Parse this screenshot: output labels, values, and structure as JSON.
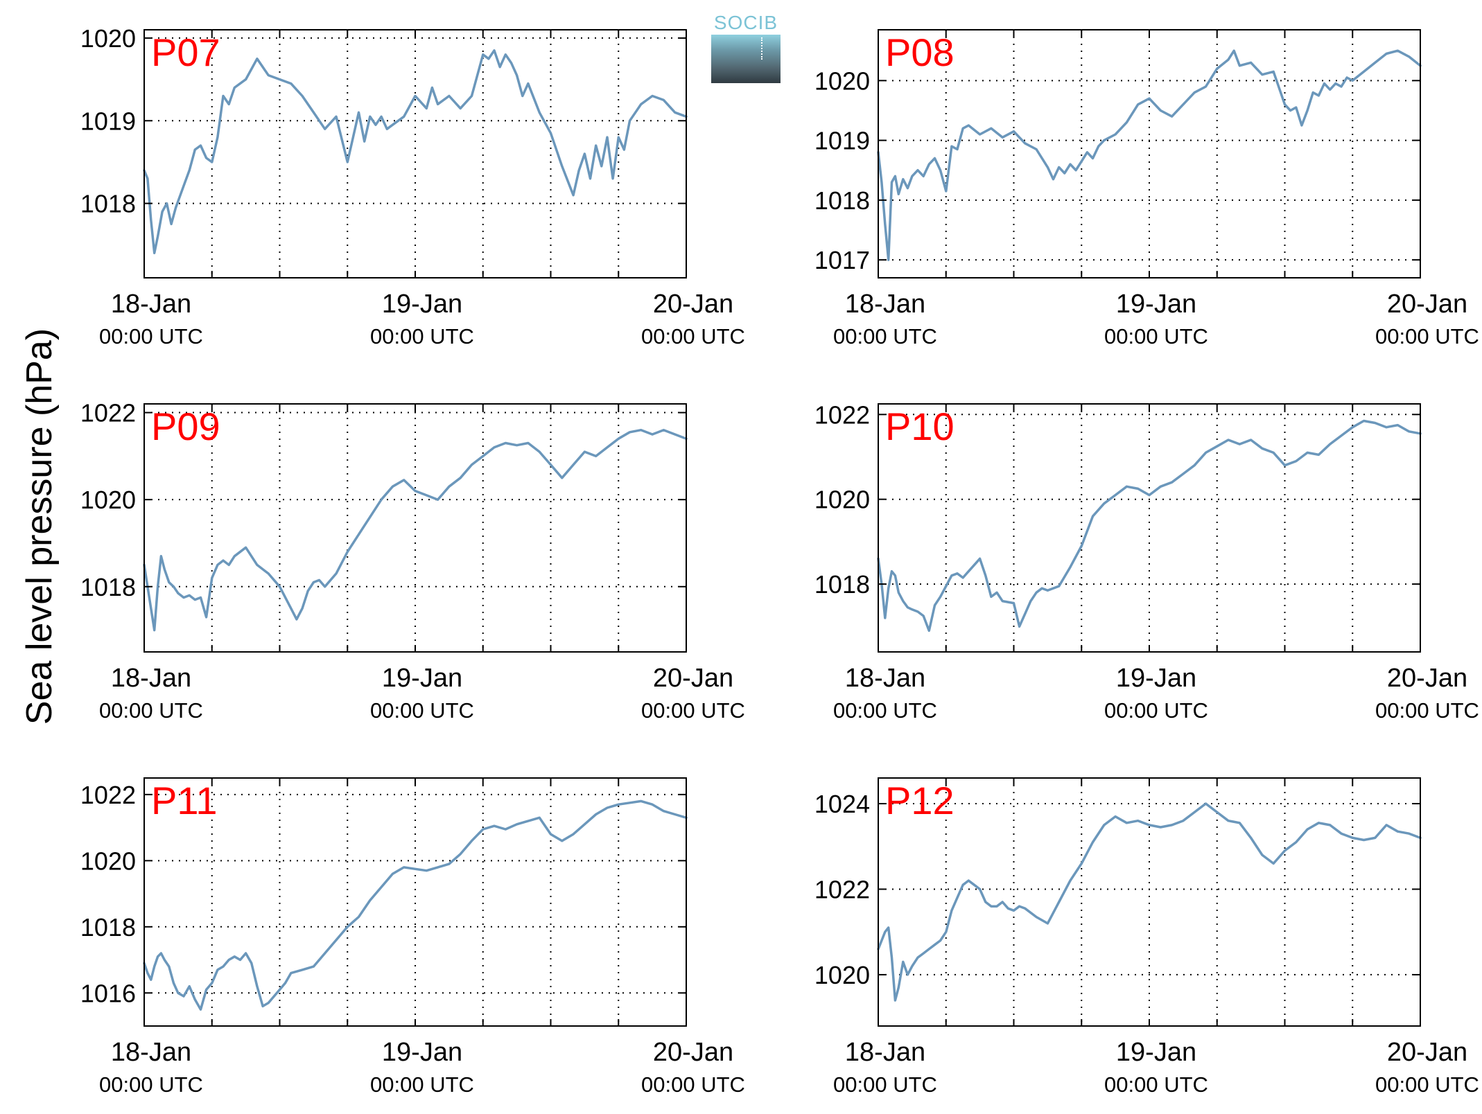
{
  "figure": {
    "ylabel": "Sea level pressure (hPa)",
    "logo_text": "SOCIB",
    "colors": {
      "line": "#6b97bb",
      "panel_label": "#ff0000",
      "axis": "#000000",
      "grid": "#000000"
    }
  },
  "chart_data": [
    {
      "type": "line",
      "title": "P07",
      "x_tick_labels": [
        [
          "18-Jan",
          "00:00 UTC"
        ],
        [
          "19-Jan",
          "00:00 UTC"
        ],
        [
          "20-Jan",
          "00:00 UTC"
        ]
      ],
      "x_ticks_hours": [
        0,
        6,
        12,
        18,
        24,
        30,
        36,
        42,
        48
      ],
      "xlim": [
        0,
        48
      ],
      "ylim": [
        1017.1,
        1020.1
      ],
      "yticks": [
        1018,
        1019,
        1020
      ],
      "grid": true,
      "series": [
        {
          "x": [
            0,
            0.3,
            0.6,
            0.9,
            1.2,
            1.6,
            2,
            2.4,
            2.8,
            3.2,
            3.6,
            4,
            4.5,
            5,
            5.5,
            6,
            6.5,
            7,
            7.5,
            8,
            9,
            10,
            11,
            12,
            13,
            14,
            15,
            16,
            17,
            18,
            18.5,
            19,
            19.5,
            20,
            20.5,
            21,
            21.5,
            22,
            23,
            24,
            25,
            25.5,
            26,
            27,
            28,
            29,
            30,
            30.5,
            31,
            31.5,
            32,
            32.5,
            33,
            33.5,
            34,
            35,
            36,
            37,
            38,
            38.5,
            39,
            39.5,
            40,
            40.5,
            41,
            41.5,
            42,
            42.5,
            43,
            43.5,
            44,
            45,
            46,
            47,
            48
          ],
          "y": [
            1018.4,
            1018.3,
            1017.8,
            1017.4,
            1017.6,
            1017.9,
            1018.0,
            1017.75,
            1017.95,
            1018.1,
            1018.25,
            1018.4,
            1018.65,
            1018.7,
            1018.55,
            1018.5,
            1018.8,
            1019.3,
            1019.2,
            1019.4,
            1019.5,
            1019.75,
            1019.55,
            1019.5,
            1019.45,
            1019.3,
            1019.1,
            1018.9,
            1019.05,
            1018.5,
            1018.8,
            1019.1,
            1018.75,
            1019.05,
            1018.95,
            1019.05,
            1018.9,
            1018.95,
            1019.05,
            1019.3,
            1019.15,
            1019.4,
            1019.2,
            1019.3,
            1019.15,
            1019.3,
            1019.8,
            1019.75,
            1019.85,
            1019.65,
            1019.8,
            1019.7,
            1019.55,
            1019.3,
            1019.45,
            1019.1,
            1018.85,
            1018.45,
            1018.1,
            1018.4,
            1018.6,
            1018.3,
            1018.7,
            1018.45,
            1018.8,
            1018.3,
            1018.8,
            1018.65,
            1019.0,
            1019.1,
            1019.2,
            1019.3,
            1019.25,
            1019.1,
            1019.05
          ]
        }
      ]
    },
    {
      "type": "line",
      "title": "P08",
      "x_tick_labels": [
        [
          "18-Jan",
          "00:00 UTC"
        ],
        [
          "19-Jan",
          "00:00 UTC"
        ],
        [
          "20-Jan",
          "00:00 UTC"
        ]
      ],
      "x_ticks_hours": [
        0,
        6,
        12,
        18,
        24,
        30,
        36,
        42,
        48
      ],
      "xlim": [
        0,
        48
      ],
      "ylim": [
        1016.7,
        1020.85
      ],
      "yticks": [
        1017,
        1018,
        1019,
        1020
      ],
      "grid": true,
      "series": [
        {
          "x": [
            0,
            0.3,
            0.6,
            0.9,
            1.2,
            1.5,
            1.8,
            2.2,
            2.6,
            3,
            3.5,
            4,
            4.5,
            5,
            5.5,
            6,
            6.5,
            7,
            7.5,
            8,
            9,
            10,
            11,
            12,
            13,
            14,
            15,
            15.5,
            16,
            16.5,
            17,
            17.5,
            18,
            18.5,
            19,
            19.5,
            20,
            21,
            22,
            23,
            24,
            25,
            26,
            27,
            28,
            29,
            30,
            31,
            31.5,
            32,
            33,
            34,
            35,
            36,
            36.5,
            37,
            37.5,
            38,
            38.5,
            39,
            39.5,
            40,
            40.5,
            41,
            41.5,
            42,
            43,
            44,
            45,
            46,
            47,
            48
          ],
          "y": [
            1018.8,
            1018.3,
            1017.6,
            1017.0,
            1018.3,
            1018.4,
            1018.1,
            1018.35,
            1018.2,
            1018.4,
            1018.5,
            1018.4,
            1018.6,
            1018.7,
            1018.5,
            1018.15,
            1018.9,
            1018.85,
            1019.2,
            1019.25,
            1019.1,
            1019.2,
            1019.05,
            1019.15,
            1018.95,
            1018.85,
            1018.55,
            1018.35,
            1018.55,
            1018.45,
            1018.6,
            1018.5,
            1018.65,
            1018.8,
            1018.7,
            1018.9,
            1019.0,
            1019.1,
            1019.3,
            1019.6,
            1019.7,
            1019.5,
            1019.4,
            1019.6,
            1019.8,
            1019.9,
            1020.2,
            1020.35,
            1020.5,
            1020.25,
            1020.3,
            1020.1,
            1020.15,
            1019.6,
            1019.5,
            1019.55,
            1019.25,
            1019.5,
            1019.8,
            1019.75,
            1019.95,
            1019.85,
            1019.95,
            1019.9,
            1020.05,
            1020.0,
            1020.15,
            1020.3,
            1020.45,
            1020.5,
            1020.4,
            1020.25
          ]
        }
      ]
    },
    {
      "type": "line",
      "title": "P09",
      "x_tick_labels": [
        [
          "18-Jan",
          "00:00 UTC"
        ],
        [
          "19-Jan",
          "00:00 UTC"
        ],
        [
          "20-Jan",
          "00:00 UTC"
        ]
      ],
      "x_ticks_hours": [
        0,
        6,
        12,
        18,
        24,
        30,
        36,
        42,
        48
      ],
      "xlim": [
        0,
        48
      ],
      "ylim": [
        1016.5,
        1022.2
      ],
      "yticks": [
        1018,
        1020,
        1022
      ],
      "grid": true,
      "series": [
        {
          "x": [
            0,
            0.3,
            0.6,
            0.9,
            1.2,
            1.5,
            1.8,
            2.2,
            2.6,
            3,
            3.5,
            4,
            4.5,
            5,
            5.5,
            6,
            6.5,
            7,
            7.5,
            8,
            9,
            10,
            11,
            12,
            13,
            13.5,
            14,
            14.5,
            15,
            15.5,
            16,
            17,
            18,
            19,
            20,
            21,
            22,
            23,
            24,
            25,
            26,
            27,
            28,
            29,
            30,
            31,
            32,
            33,
            34,
            35,
            36,
            37,
            38,
            39,
            40,
            41,
            42,
            43,
            44,
            45,
            46,
            47,
            48
          ],
          "y": [
            1018.5,
            1018.0,
            1017.5,
            1017.0,
            1018.0,
            1018.7,
            1018.4,
            1018.1,
            1018.0,
            1017.85,
            1017.75,
            1017.8,
            1017.7,
            1017.75,
            1017.3,
            1018.2,
            1018.5,
            1018.6,
            1018.5,
            1018.7,
            1018.9,
            1018.5,
            1018.3,
            1018.0,
            1017.5,
            1017.25,
            1017.5,
            1017.9,
            1018.1,
            1018.15,
            1018.0,
            1018.3,
            1018.8,
            1019.2,
            1019.6,
            1020.0,
            1020.3,
            1020.45,
            1020.2,
            1020.1,
            1020.0,
            1020.3,
            1020.5,
            1020.8,
            1021.0,
            1021.2,
            1021.3,
            1021.25,
            1021.3,
            1021.1,
            1020.8,
            1020.5,
            1020.8,
            1021.1,
            1021.0,
            1021.2,
            1021.4,
            1021.55,
            1021.6,
            1021.5,
            1021.6,
            1021.5,
            1021.4
          ]
        }
      ]
    },
    {
      "type": "line",
      "title": "P10",
      "x_tick_labels": [
        [
          "18-Jan",
          "00:00 UTC"
        ],
        [
          "19-Jan",
          "00:00 UTC"
        ],
        [
          "20-Jan",
          "00:00 UTC"
        ]
      ],
      "x_ticks_hours": [
        0,
        6,
        12,
        18,
        24,
        30,
        36,
        42,
        48
      ],
      "xlim": [
        0,
        48
      ],
      "ylim": [
        1016.4,
        1022.25
      ],
      "yticks": [
        1018,
        1020,
        1022
      ],
      "grid": true,
      "series": [
        {
          "x": [
            0,
            0.3,
            0.6,
            0.9,
            1.2,
            1.5,
            1.8,
            2.2,
            2.6,
            3,
            3.5,
            4,
            4.5,
            5,
            5.5,
            6,
            6.5,
            7,
            7.5,
            8,
            9,
            9.5,
            10,
            10.5,
            11,
            12,
            12.5,
            13,
            13.5,
            14,
            14.5,
            15,
            16,
            17,
            18,
            19,
            20,
            21,
            22,
            23,
            24,
            25,
            26,
            27,
            28,
            29,
            30,
            31,
            32,
            33,
            34,
            35,
            36,
            37,
            38,
            39,
            40,
            41,
            42,
            43,
            44,
            45,
            46,
            47,
            48
          ],
          "y": [
            1018.6,
            1018.0,
            1017.2,
            1017.9,
            1018.3,
            1018.2,
            1017.8,
            1017.6,
            1017.45,
            1017.4,
            1017.35,
            1017.25,
            1016.9,
            1017.5,
            1017.7,
            1017.95,
            1018.2,
            1018.25,
            1018.15,
            1018.3,
            1018.6,
            1018.2,
            1017.7,
            1017.8,
            1017.6,
            1017.55,
            1017.0,
            1017.3,
            1017.6,
            1017.8,
            1017.9,
            1017.85,
            1017.95,
            1018.4,
            1018.9,
            1019.6,
            1019.9,
            1020.1,
            1020.3,
            1020.25,
            1020.1,
            1020.3,
            1020.4,
            1020.6,
            1020.8,
            1021.1,
            1021.25,
            1021.4,
            1021.3,
            1021.4,
            1021.2,
            1021.1,
            1020.8,
            1020.9,
            1021.1,
            1021.05,
            1021.3,
            1021.5,
            1021.7,
            1021.85,
            1021.8,
            1021.7,
            1021.75,
            1021.6,
            1021.55
          ]
        }
      ]
    },
    {
      "type": "line",
      "title": "P11",
      "x_tick_labels": [
        [
          "18-Jan",
          "00:00 UTC"
        ],
        [
          "19-Jan",
          "00:00 UTC"
        ],
        [
          "20-Jan",
          "00:00 UTC"
        ]
      ],
      "x_ticks_hours": [
        0,
        6,
        12,
        18,
        24,
        30,
        36,
        42,
        48
      ],
      "xlim": [
        0,
        48
      ],
      "ylim": [
        1015.0,
        1022.5
      ],
      "yticks": [
        1016,
        1018,
        1020,
        1022
      ],
      "grid": true,
      "series": [
        {
          "x": [
            0,
            0.3,
            0.6,
            0.9,
            1.2,
            1.5,
            1.8,
            2.2,
            2.6,
            3,
            3.5,
            4,
            4.5,
            5,
            5.5,
            6,
            6.5,
            7,
            7.5,
            8,
            8.5,
            9,
            9.5,
            10,
            10.5,
            11,
            11.5,
            12,
            12.5,
            13,
            14,
            15,
            16,
            17,
            18,
            19,
            20,
            21,
            22,
            23,
            24,
            25,
            26,
            27,
            28,
            29,
            30,
            31,
            32,
            33,
            34,
            35,
            36,
            37,
            38,
            39,
            40,
            41,
            42,
            43,
            44,
            45,
            46,
            47,
            48
          ],
          "y": [
            1016.9,
            1016.6,
            1016.4,
            1016.8,
            1017.1,
            1017.2,
            1017.0,
            1016.8,
            1016.3,
            1016.0,
            1015.9,
            1016.2,
            1015.8,
            1015.5,
            1016.1,
            1016.3,
            1016.7,
            1016.8,
            1017.0,
            1017.1,
            1017.0,
            1017.2,
            1016.9,
            1016.2,
            1015.6,
            1015.7,
            1015.9,
            1016.1,
            1016.3,
            1016.6,
            1016.7,
            1016.8,
            1017.2,
            1017.6,
            1018.0,
            1018.3,
            1018.8,
            1019.2,
            1019.6,
            1019.8,
            1019.75,
            1019.7,
            1019.8,
            1019.9,
            1020.2,
            1020.6,
            1020.95,
            1021.05,
            1020.95,
            1021.1,
            1021.2,
            1021.3,
            1020.8,
            1020.6,
            1020.8,
            1021.1,
            1021.4,
            1021.6,
            1021.7,
            1021.75,
            1021.8,
            1021.7,
            1021.5,
            1021.4,
            1021.3
          ]
        }
      ]
    },
    {
      "type": "line",
      "title": "P12",
      "x_tick_labels": [
        [
          "18-Jan",
          "00:00 UTC"
        ],
        [
          "19-Jan",
          "00:00 UTC"
        ],
        [
          "20-Jan",
          "00:00 UTC"
        ]
      ],
      "x_ticks_hours": [
        0,
        6,
        12,
        18,
        24,
        30,
        36,
        42,
        48
      ],
      "xlim": [
        0,
        48
      ],
      "ylim": [
        1018.8,
        1024.6
      ],
      "yticks": [
        1020,
        1022,
        1024
      ],
      "grid": true,
      "series": [
        {
          "x": [
            0,
            0.3,
            0.6,
            0.9,
            1.2,
            1.5,
            1.8,
            2.2,
            2.6,
            3,
            3.5,
            4,
            4.5,
            5,
            5.5,
            6,
            6.5,
            7,
            7.5,
            8,
            8.5,
            9,
            9.5,
            10,
            10.5,
            11,
            11.5,
            12,
            12.5,
            13,
            14,
            15,
            16,
            17,
            18,
            19,
            20,
            21,
            22,
            23,
            24,
            25,
            26,
            27,
            28,
            29,
            30,
            31,
            32,
            33,
            34,
            35,
            36,
            37,
            38,
            39,
            40,
            41,
            42,
            43,
            44,
            45,
            46,
            47,
            48
          ],
          "y": [
            1020.6,
            1020.8,
            1021.0,
            1021.1,
            1020.4,
            1019.4,
            1019.7,
            1020.3,
            1020.0,
            1020.2,
            1020.4,
            1020.5,
            1020.6,
            1020.7,
            1020.8,
            1021.0,
            1021.5,
            1021.8,
            1022.1,
            1022.2,
            1022.1,
            1022.0,
            1021.7,
            1021.6,
            1021.6,
            1021.7,
            1021.55,
            1021.5,
            1021.6,
            1021.55,
            1021.35,
            1021.2,
            1021.7,
            1022.2,
            1022.6,
            1023.1,
            1023.5,
            1023.7,
            1023.55,
            1023.6,
            1023.5,
            1023.45,
            1023.5,
            1023.6,
            1023.8,
            1024.0,
            1023.8,
            1023.6,
            1023.55,
            1023.2,
            1022.8,
            1022.6,
            1022.9,
            1023.1,
            1023.4,
            1023.55,
            1023.5,
            1023.3,
            1023.2,
            1023.15,
            1023.2,
            1023.5,
            1023.35,
            1023.3,
            1023.2
          ]
        }
      ]
    }
  ]
}
